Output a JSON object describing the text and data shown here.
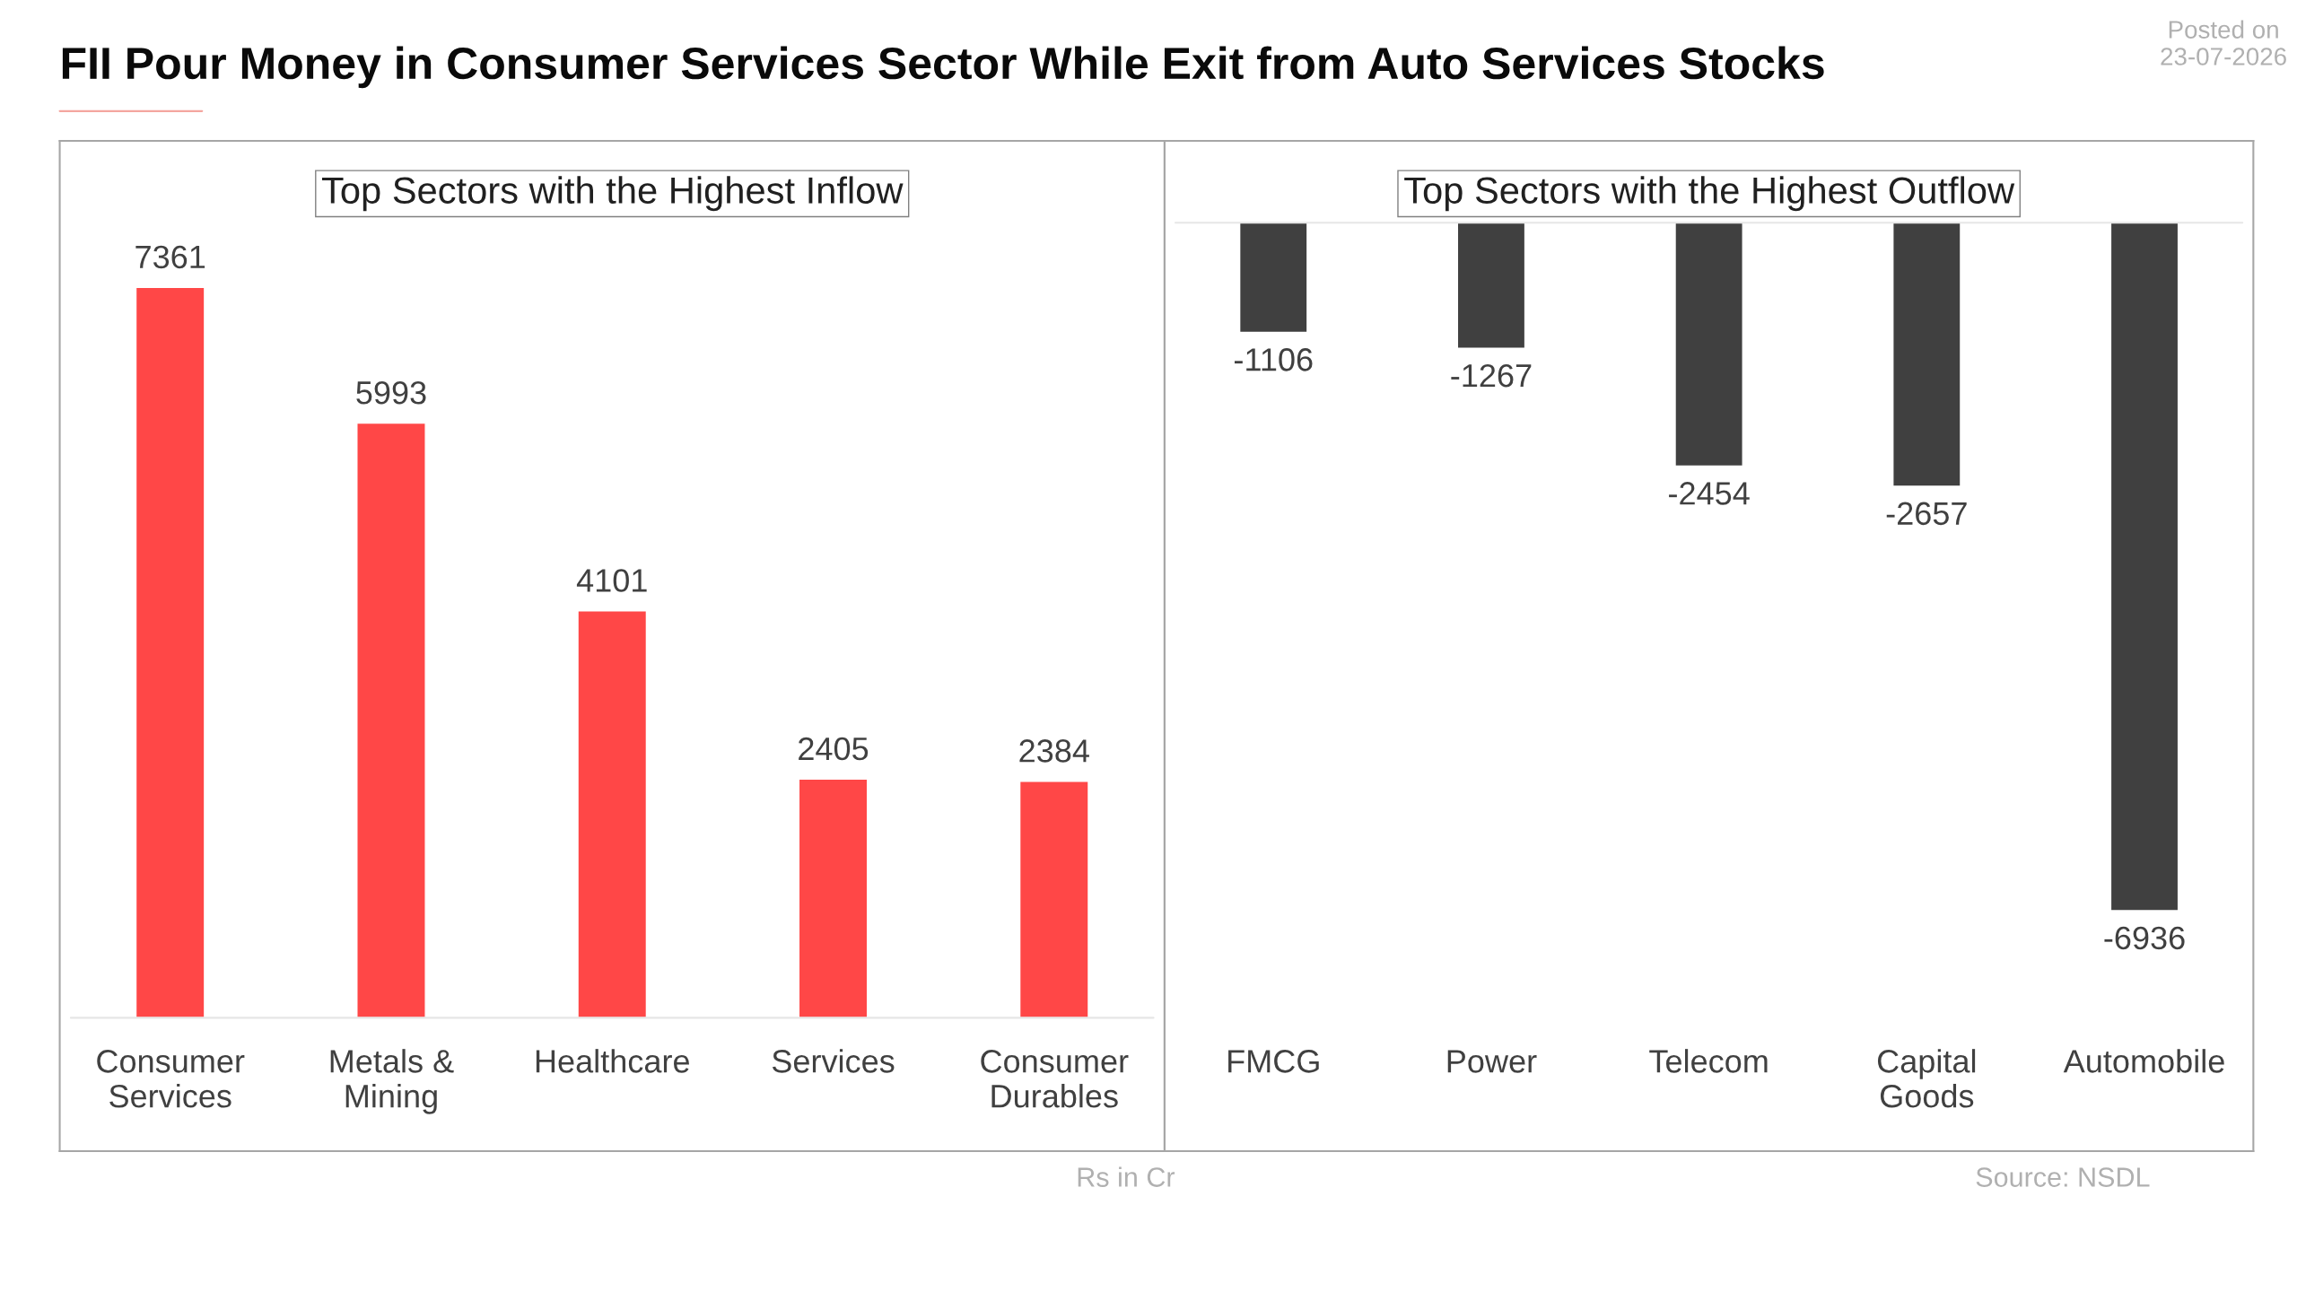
{
  "chart_data": [
    {
      "type": "bar",
      "title": "FII Pour Money in Consumer Services Sector While Exit from Auto Services Stocks",
      "subtitle": "Top Sectors with the Highest Inflow",
      "categories": [
        "Consumer\nServices",
        "Metals &\nMining",
        "Healthcare",
        "Services",
        "Consumer\nDurables"
      ],
      "series": [
        {
          "color": "#ff4747",
          "values": [
            7361,
            5993,
            4101,
            2405,
            2384
          ]
        }
      ],
      "data_labels": true,
      "grid": false,
      "legend": false,
      "annotations": [
        "Posted on\n23-07-2026",
        "Rs in Cr"
      ]
    },
    {
      "type": "bar",
      "subtitle": "Top Sectors with the Highest Outflow",
      "categories": [
        "FMCG",
        "Power",
        "Telecom",
        "Capital\nGoods",
        "Automobile"
      ],
      "series": [
        {
          "color": "#404040",
          "values": [
            -1106,
            -1267,
            -2454,
            -2657,
            -6936
          ]
        }
      ],
      "data_labels": true,
      "grid": false,
      "legend": false,
      "annotations": [
        "Source: NSDL"
      ]
    }
  ]
}
